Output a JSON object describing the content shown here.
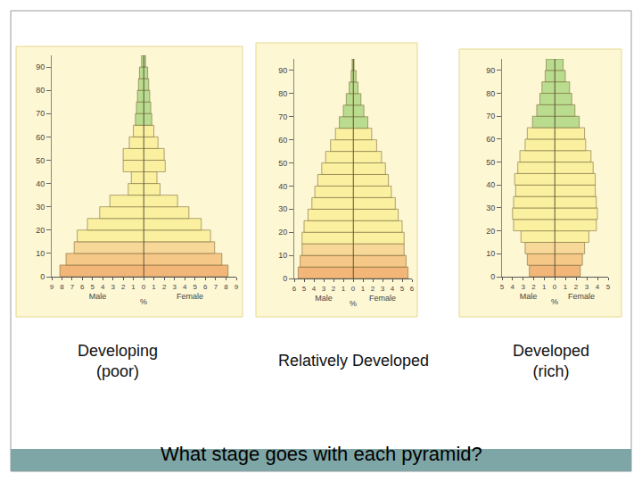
{
  "chart_data": [
    {
      "type": "bar",
      "orientation": "horizontal",
      "title": "Developing\n(poor)",
      "xlabel": "%",
      "y": [
        0,
        5,
        10,
        15,
        20,
        25,
        30,
        35,
        40,
        45,
        50,
        55,
        60,
        65,
        70,
        75,
        80,
        85,
        90
      ],
      "series": [
        {
          "name": "Male",
          "values": [
            8.2,
            7.6,
            6.8,
            6.5,
            5.5,
            4.3,
            3.3,
            1.5,
            1.2,
            2.0,
            2.0,
            1.4,
            1.0,
            0.8,
            0.7,
            0.6,
            0.5,
            0.4,
            0.2
          ]
        },
        {
          "name": "Female",
          "values": [
            8.2,
            7.6,
            6.9,
            6.5,
            5.6,
            4.4,
            3.3,
            1.6,
            1.3,
            2.1,
            2.0,
            1.4,
            1.0,
            0.8,
            0.7,
            0.6,
            0.5,
            0.4,
            0.2
          ]
        }
      ],
      "colors": [
        "#f3b679",
        "#f6c888",
        "#f8d898",
        "#faf0a0",
        "#faf0a0",
        "#faf0a0",
        "#faf0a0",
        "#faf0a0",
        "#faf0a0",
        "#faf0a0",
        "#faf0a0",
        "#faf0a0",
        "#faf0a0",
        "#b9dc8e",
        "#b9dc8e",
        "#b9dc8e",
        "#b9dc8e",
        "#b9dc8e",
        "#b9dc8e"
      ],
      "xlim": [
        0,
        9
      ],
      "xticks": [
        0,
        1,
        2,
        3,
        4,
        5,
        6,
        7,
        8,
        9
      ],
      "ylim": [
        0,
        95
      ],
      "yticks": [
        0,
        10,
        20,
        30,
        40,
        50,
        60,
        70,
        80,
        90
      ]
    },
    {
      "type": "bar",
      "orientation": "horizontal",
      "title": "Relatively Developed",
      "xlabel": "%",
      "y": [
        0,
        5,
        10,
        15,
        20,
        25,
        30,
        35,
        40,
        45,
        50,
        55,
        60,
        65,
        70,
        75,
        80,
        85,
        90
      ],
      "series": [
        {
          "name": "Male",
          "values": [
            5.6,
            5.4,
            5.2,
            5.2,
            5.0,
            4.6,
            4.2,
            3.9,
            3.6,
            3.2,
            2.8,
            2.3,
            1.8,
            1.4,
            1.0,
            0.7,
            0.4,
            0.2,
            0.1
          ]
        },
        {
          "name": "Female",
          "values": [
            5.6,
            5.4,
            5.2,
            5.2,
            5.0,
            4.6,
            4.3,
            3.9,
            3.6,
            3.3,
            2.9,
            2.4,
            1.9,
            1.5,
            1.1,
            0.8,
            0.5,
            0.3,
            0.1
          ]
        }
      ],
      "colors": [
        "#f3b679",
        "#f6c888",
        "#f8d898",
        "#faf0a0",
        "#faf0a0",
        "#faf0a0",
        "#faf0a0",
        "#faf0a0",
        "#faf0a0",
        "#faf0a0",
        "#faf0a0",
        "#faf0a0",
        "#faf0a0",
        "#b9dc8e",
        "#b9dc8e",
        "#b9dc8e",
        "#b9dc8e",
        "#b9dc8e",
        "#b9dc8e"
      ],
      "xlim": [
        0,
        6
      ],
      "xticks": [
        0,
        1,
        2,
        3,
        4,
        5,
        6
      ],
      "ylim": [
        0,
        95
      ],
      "yticks": [
        0,
        10,
        20,
        30,
        40,
        50,
        60,
        70,
        80,
        90
      ]
    },
    {
      "type": "bar",
      "orientation": "horizontal",
      "title": "Developed\n(rich)",
      "xlabel": "%",
      "y": [
        0,
        5,
        10,
        15,
        20,
        25,
        30,
        35,
        40,
        45,
        50,
        55,
        60,
        65,
        70,
        75,
        80,
        85,
        90
      ],
      "series": [
        {
          "name": "Male",
          "values": [
            2.4,
            2.6,
            2.8,
            3.2,
            3.9,
            4.0,
            3.9,
            3.7,
            3.8,
            3.5,
            3.3,
            2.8,
            2.6,
            2.1,
            1.7,
            1.4,
            1.2,
            0.9,
            0.8
          ]
        },
        {
          "name": "Female",
          "values": [
            2.4,
            2.6,
            2.8,
            3.2,
            3.9,
            4.0,
            3.9,
            3.8,
            3.8,
            3.6,
            3.4,
            2.9,
            2.8,
            2.3,
            1.9,
            1.6,
            1.4,
            1.0,
            0.8
          ]
        }
      ],
      "colors": [
        "#f3b679",
        "#f6c888",
        "#f8d898",
        "#faf0a0",
        "#faf0a0",
        "#faf0a0",
        "#faf0a0",
        "#faf0a0",
        "#faf0a0",
        "#faf0a0",
        "#faf0a0",
        "#faf0a0",
        "#faf0a0",
        "#b9dc8e",
        "#b9dc8e",
        "#b9dc8e",
        "#b9dc8e",
        "#b9dc8e",
        "#b9dc8e"
      ],
      "xlim": [
        0,
        5
      ],
      "xticks": [
        0,
        1,
        2,
        3,
        4,
        5
      ],
      "ylim": [
        0,
        95
      ],
      "yticks": [
        0,
        10,
        20,
        30,
        40,
        50,
        60,
        70,
        80,
        90
      ]
    }
  ],
  "question": "What stage goes with each pyramid?"
}
